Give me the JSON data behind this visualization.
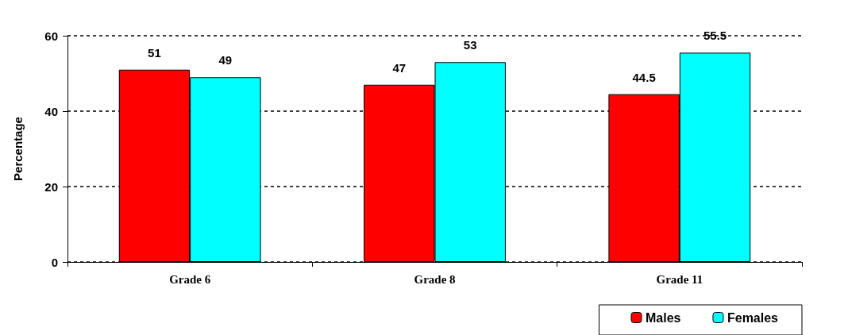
{
  "chart_data": {
    "type": "bar",
    "ylabel": "Percentage",
    "categories": [
      "Grade 6",
      "Grade 8",
      "Grade 11"
    ],
    "series": [
      {
        "name": "Males",
        "color": "#ff0000",
        "values": [
          51,
          47,
          44.5
        ]
      },
      {
        "name": "Females",
        "color": "#00ffff",
        "values": [
          49,
          53,
          55.5
        ]
      }
    ],
    "ylim": [
      0,
      60
    ],
    "yticks": [
      0,
      20,
      40,
      60
    ],
    "grid": "y",
    "legend": "bottom right",
    "data_labels": true
  }
}
